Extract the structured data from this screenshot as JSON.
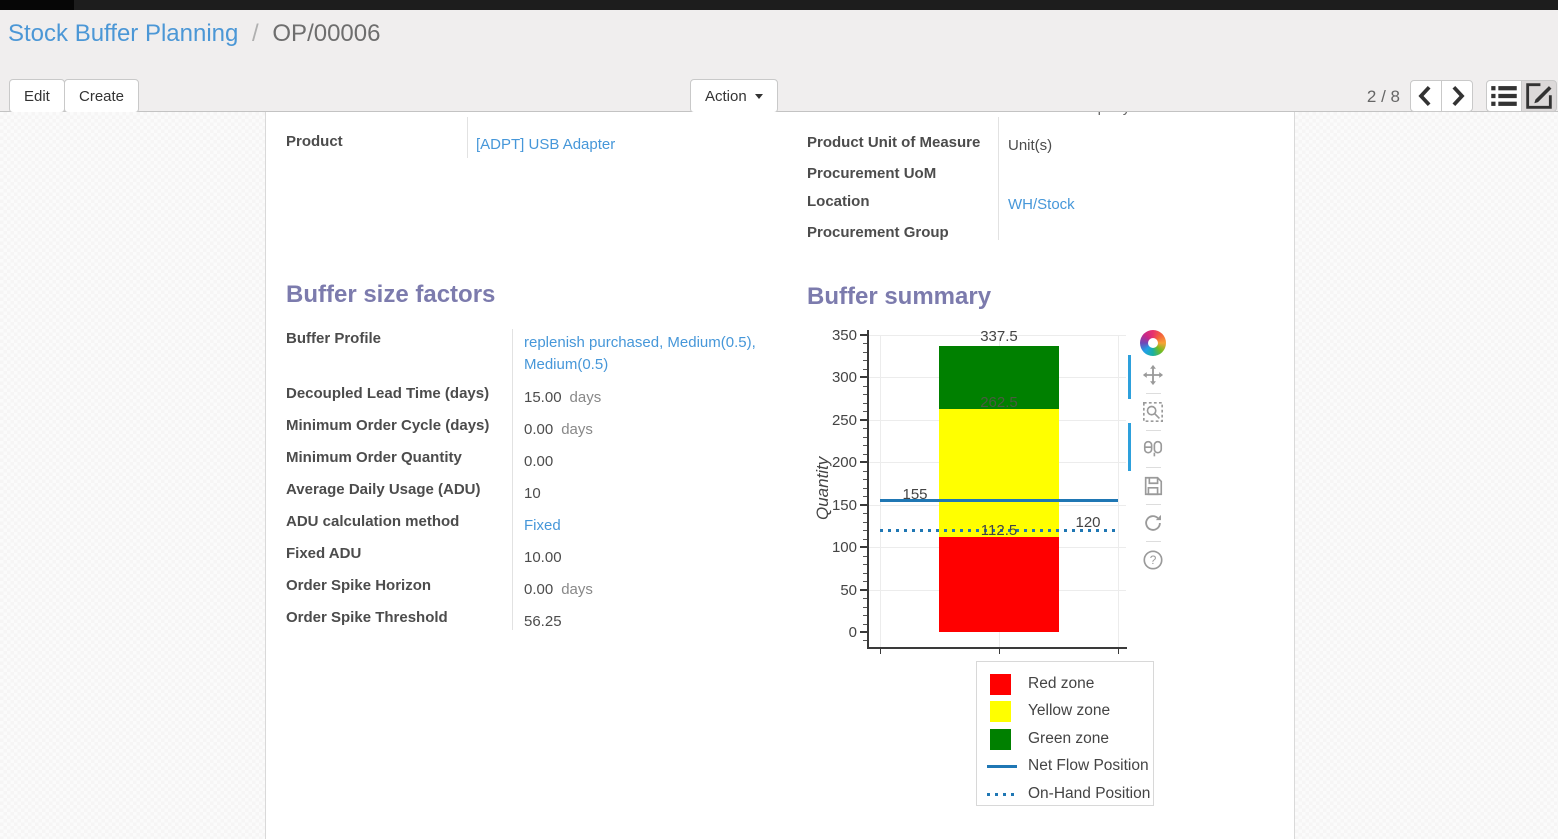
{
  "header": {
    "breadcrumb": {
      "parent": "Stock Buffer Planning",
      "separator": "/",
      "current": "OP/00006"
    },
    "buttons": {
      "edit": "Edit",
      "create": "Create",
      "action": "Action"
    },
    "pager": {
      "text": "2 / 8"
    }
  },
  "record": {
    "clipped_top_value": "Company",
    "left_fields": [
      {
        "label": "Product",
        "value": "[ADPT] USB Adapter",
        "link": true
      }
    ],
    "right_fields": [
      {
        "label": "Product Unit of Measure",
        "value": "Unit(s)",
        "link": false
      },
      {
        "label": "Procurement UoM",
        "value": "",
        "link": false
      },
      {
        "label": "Location",
        "value": "WH/Stock",
        "link": true
      },
      {
        "label": "Procurement Group",
        "value": "",
        "link": false
      }
    ]
  },
  "buffer_size_factors": {
    "title": "Buffer size factors",
    "fields": [
      {
        "label": "Buffer Profile",
        "value": "replenish purchased, Medium(0.5), Medium(0.5)",
        "link": true
      },
      {
        "label": "Decoupled Lead Time (days)",
        "value": "15.00",
        "suffix": "days"
      },
      {
        "label": "Minimum Order Cycle (days)",
        "value": "0.00",
        "suffix": "days"
      },
      {
        "label": "Minimum Order Quantity",
        "value": "0.00"
      },
      {
        "label": "Average Daily Usage (ADU)",
        "value": "10"
      },
      {
        "label": "ADU calculation method",
        "value": "Fixed",
        "link": true
      },
      {
        "label": "Fixed ADU",
        "value": "10.00"
      },
      {
        "label": "Order Spike Horizon",
        "value": "0.00",
        "suffix": "days"
      },
      {
        "label": "Order Spike Threshold",
        "value": "56.25"
      }
    ]
  },
  "buffer_summary": {
    "title": "Buffer summary"
  },
  "chart_data": {
    "type": "bar",
    "stacked": true,
    "categories": [
      ""
    ],
    "ylabel": "Quantity",
    "ylim": [
      0,
      350
    ],
    "yticks": [
      0,
      50,
      100,
      150,
      200,
      250,
      300,
      350
    ],
    "minor_tick_step": 10,
    "grid": true,
    "series": [
      {
        "name": "Red zone",
        "values": [
          112.5
        ],
        "color": "#ff0000"
      },
      {
        "name": "Yellow zone",
        "values": [
          150
        ],
        "color": "#ffff00"
      },
      {
        "name": "Green zone",
        "values": [
          75
        ],
        "color": "#008000"
      }
    ],
    "lines": [
      {
        "name": "Net Flow Position",
        "value": 155,
        "style": "solid",
        "color": "#1f77b4"
      },
      {
        "name": "On-Hand Position",
        "value": 120,
        "style": "dotted",
        "color": "#1f77b4"
      }
    ],
    "annotations": [
      {
        "text": "337.5",
        "value": 337.5,
        "anchor": "bar-top"
      },
      {
        "text": "262.5",
        "value": 262.5,
        "anchor": "inside"
      },
      {
        "text": "112.5",
        "value": 112.5,
        "anchor": "above"
      },
      {
        "text": "155",
        "value": 155,
        "anchor": "line-left"
      },
      {
        "text": "120",
        "value": 120,
        "anchor": "line-right"
      }
    ],
    "legend": {
      "position": "bottom-right",
      "entries": [
        {
          "label": "Red zone",
          "swatch": "square",
          "color": "#ff0000"
        },
        {
          "label": "Yellow zone",
          "swatch": "square",
          "color": "#ffff00"
        },
        {
          "label": "Green zone",
          "swatch": "square",
          "color": "#008000"
        },
        {
          "label": "Net Flow Position",
          "swatch": "line",
          "color": "#1f77b4"
        },
        {
          "label": "On-Hand Position",
          "swatch": "dots",
          "color": "#1f77b4"
        }
      ]
    },
    "modebar_icons": [
      "plotly-logo",
      "pan",
      "box-zoom",
      "hover-compare",
      "save",
      "refresh",
      "help"
    ]
  },
  "colors": {
    "link": "#4697d9",
    "heading": "#7c7bad",
    "accent_blue": "#2da0dc",
    "net_flow_blue": "#1f77b4"
  }
}
